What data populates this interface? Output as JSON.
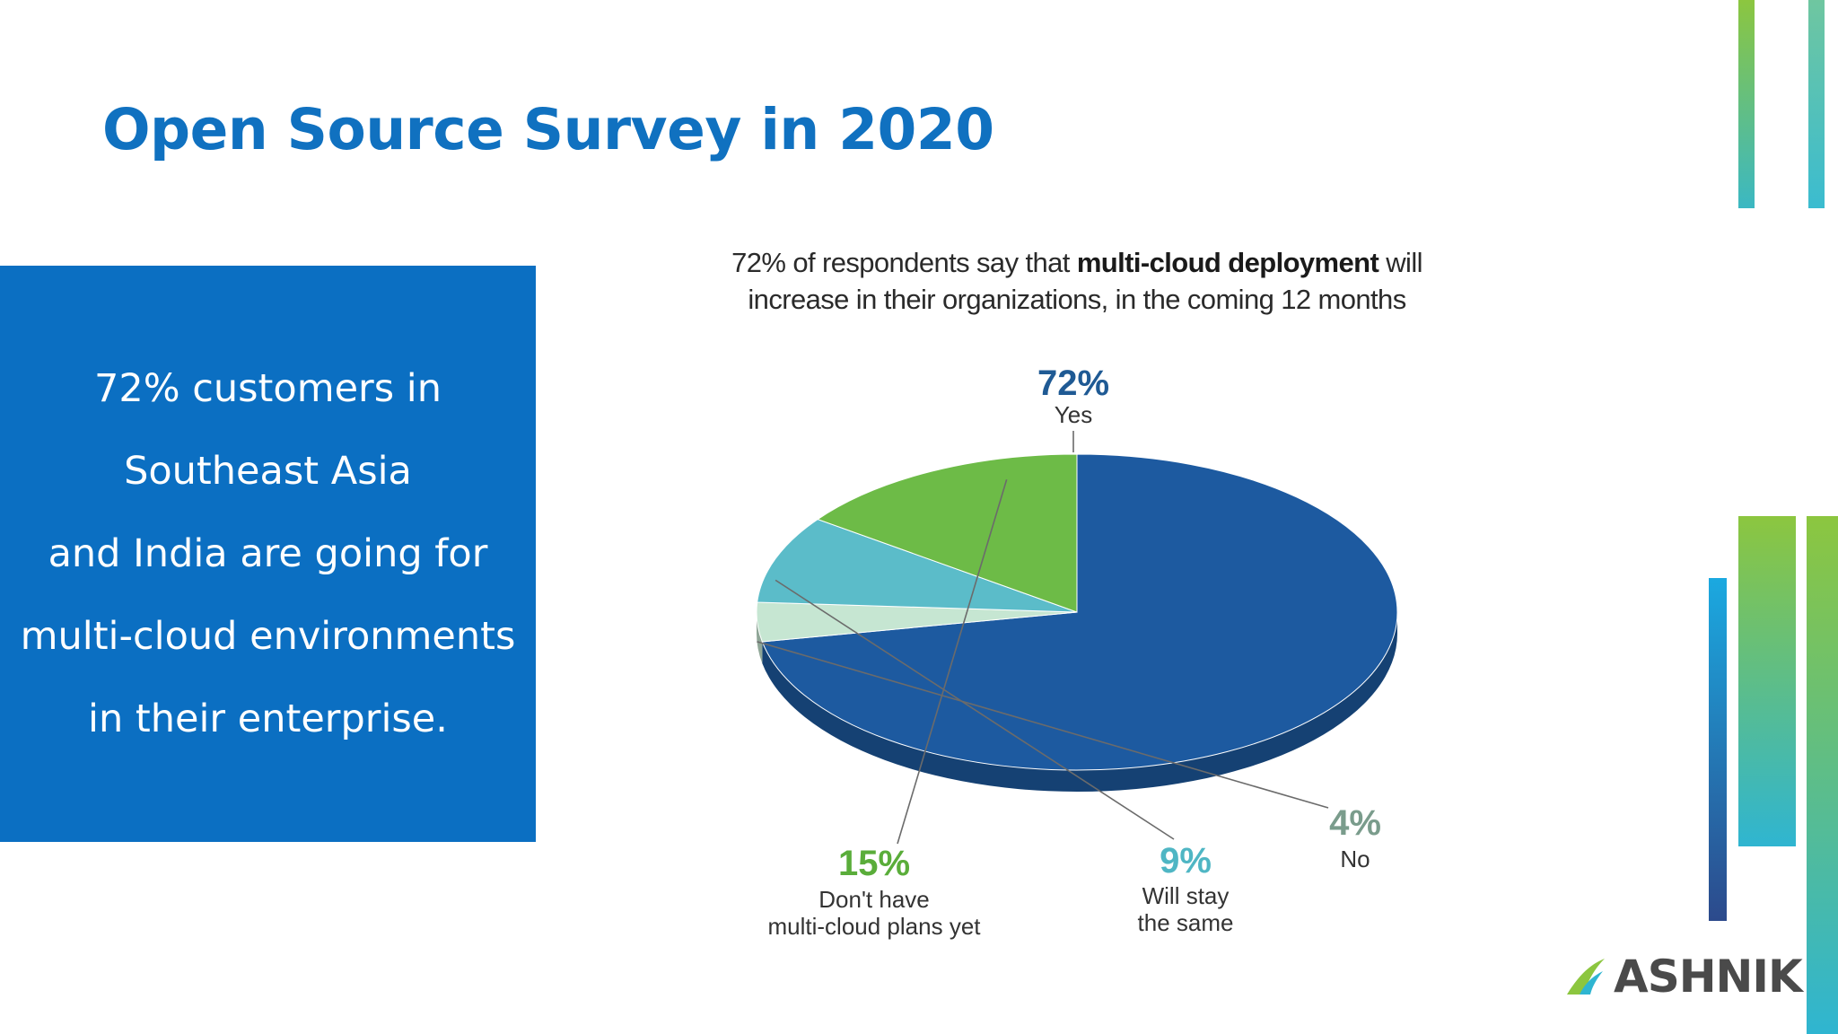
{
  "slide": {
    "title": "Open Source Survey in 2020",
    "callout_lines": [
      "72% customers in",
      "Southeast Asia",
      "and India are going for",
      "multi-cloud environments",
      "in their enterprise."
    ]
  },
  "chart_data": {
    "type": "pie",
    "title_parts": {
      "pre": "72% of respondents say that ",
      "bold": "multi-cloud deployment",
      "post": " will",
      "line2": "increase in their organizations, in the coming 12 months"
    },
    "slices": [
      {
        "pct_label": "72%",
        "label_lines": [
          "Yes"
        ],
        "value": 72,
        "color": "#1d5aa0",
        "label_color": "#1f5a94"
      },
      {
        "pct_label": "4%",
        "label_lines": [
          "No"
        ],
        "value": 4,
        "color": "#c6e6d2",
        "label_color": "#7a9c8c"
      },
      {
        "pct_label": "9%",
        "label_lines": [
          "Will stay",
          "the same"
        ],
        "value": 9,
        "color": "#5bbcc9",
        "label_color": "#4fb6c4"
      },
      {
        "pct_label": "15%",
        "label_lines": [
          "Don't have",
          "multi-cloud plans yet"
        ],
        "value": 15,
        "color": "#6dbb47",
        "label_color": "#5aad3a"
      }
    ]
  },
  "branding": {
    "logo_text": "ASHNIK",
    "accent_colors": {
      "green": "#8cc63f",
      "teal": "#2fb5d1",
      "blue": "#0b6fc2",
      "navy": "#2c4a8c"
    }
  }
}
